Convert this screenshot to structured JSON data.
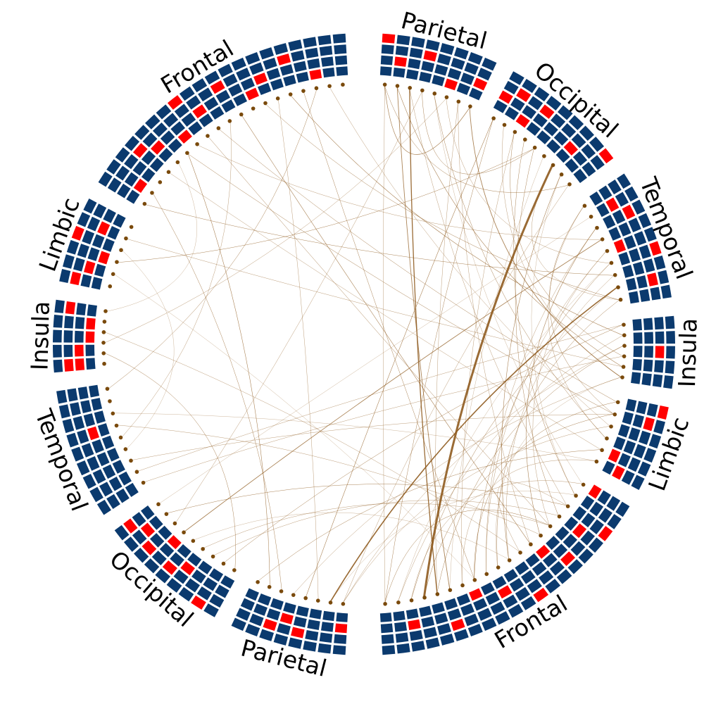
{
  "colors": {
    "cell_normal": "#0b3a6e",
    "cell_highlight": "#ff0000",
    "node": "#7a4a0c",
    "link": "#8f5b1f"
  },
  "regions": [
    {
      "label": "Frontal",
      "hemisphere": "right",
      "columns": 20,
      "rows": 4,
      "highlight": [
        [
          2,
          1
        ],
        [
          5,
          2
        ],
        [
          7,
          0
        ],
        [
          9,
          1
        ],
        [
          11,
          3
        ],
        [
          13,
          0
        ],
        [
          14,
          2
        ],
        [
          16,
          1
        ],
        [
          17,
          3
        ],
        [
          19,
          0
        ]
      ]
    },
    {
      "label": "Limbic",
      "hemisphere": "right",
      "columns": 6,
      "rows": 4,
      "highlight": [
        [
          0,
          1
        ],
        [
          1,
          0
        ],
        [
          4,
          2
        ],
        [
          5,
          3
        ]
      ]
    },
    {
      "label": "Insula",
      "hemisphere": "right",
      "columns": 5,
      "rows": 4,
      "highlight": [
        [
          2,
          2
        ]
      ]
    },
    {
      "label": "Temporal",
      "hemisphere": "right",
      "columns": 9,
      "rows": 4,
      "highlight": [
        [
          1,
          2
        ],
        [
          3,
          3
        ],
        [
          4,
          0
        ],
        [
          6,
          2
        ],
        [
          7,
          1
        ]
      ]
    },
    {
      "label": "Occipital",
      "hemisphere": "right",
      "columns": 9,
      "rows": 4,
      "highlight": [
        [
          0,
          3
        ],
        [
          2,
          1
        ],
        [
          5,
          2
        ],
        [
          6,
          0
        ],
        [
          7,
          2
        ],
        [
          8,
          1
        ]
      ]
    },
    {
      "label": "Parietal",
      "hemisphere": "right",
      "columns": 8,
      "rows": 4,
      "highlight": [
        [
          0,
          1
        ],
        [
          2,
          0
        ],
        [
          4,
          2
        ],
        [
          6,
          1
        ],
        [
          7,
          3
        ]
      ]
    },
    {
      "label": "Parietal",
      "hemisphere": "left",
      "columns": 8,
      "rows": 4,
      "highlight": [
        [
          0,
          1
        ],
        [
          3,
          2
        ],
        [
          4,
          1
        ],
        [
          5,
          2
        ]
      ]
    },
    {
      "label": "Occipital",
      "hemisphere": "left",
      "columns": 9,
      "rows": 4,
      "highlight": [
        [
          1,
          3
        ],
        [
          3,
          1
        ],
        [
          4,
          2
        ],
        [
          5,
          0
        ],
        [
          6,
          2
        ],
        [
          7,
          1
        ],
        [
          8,
          2
        ]
      ]
    },
    {
      "label": "Temporal",
      "hemisphere": "left",
      "columns": 9,
      "rows": 4,
      "highlight": [
        [
          5,
          1
        ]
      ]
    },
    {
      "label": "Insula",
      "hemisphere": "left",
      "columns": 5,
      "rows": 4,
      "highlight": [
        [
          0,
          1
        ],
        [
          0,
          2
        ],
        [
          1,
          1
        ],
        [
          2,
          0
        ],
        [
          3,
          0
        ],
        [
          4,
          2
        ]
      ]
    },
    {
      "label": "Limbic",
      "hemisphere": "left",
      "columns": 6,
      "rows": 4,
      "highlight": [
        [
          0,
          2
        ],
        [
          1,
          1
        ],
        [
          2,
          0
        ],
        [
          3,
          3
        ],
        [
          4,
          1
        ]
      ]
    },
    {
      "label": "Frontal",
      "hemisphere": "left",
      "columns": 20,
      "rows": 4,
      "highlight": [
        [
          1,
          0
        ],
        [
          3,
          2
        ],
        [
          4,
          1
        ],
        [
          6,
          0
        ],
        [
          7,
          3
        ],
        [
          8,
          1
        ],
        [
          10,
          2
        ],
        [
          12,
          0
        ],
        [
          13,
          1
        ],
        [
          15,
          2
        ],
        [
          17,
          0
        ]
      ]
    }
  ],
  "connections": [
    [
      0,
      7,
      0.7
    ],
    [
      0,
      16,
      0.5
    ],
    [
      1,
      30,
      0.6
    ],
    [
      2,
      40,
      0.4
    ],
    [
      3,
      12,
      0.5
    ],
    [
      4,
      35,
      0.5
    ],
    [
      5,
      22,
      0.4
    ],
    [
      6,
      44,
      0.4
    ],
    [
      8,
      60,
      0.6
    ],
    [
      9,
      31,
      0.4
    ],
    [
      10,
      50,
      0.4
    ],
    [
      12,
      41,
      0.5
    ],
    [
      14,
      25,
      0.4
    ],
    [
      15,
      39,
      0.3
    ],
    [
      17,
      33,
      0.5
    ],
    [
      19,
      48,
      0.4
    ],
    [
      20,
      70,
      0.9
    ],
    [
      21,
      42,
      0.4
    ],
    [
      22,
      55,
      0.3
    ],
    [
      23,
      46,
      0.4
    ],
    [
      24,
      58,
      1.6
    ],
    [
      25,
      47,
      0.5
    ],
    [
      26,
      66,
      0.5
    ],
    [
      28,
      52,
      0.5
    ],
    [
      29,
      74,
      0.4
    ],
    [
      31,
      61,
      0.4
    ],
    [
      32,
      49,
      0.5
    ],
    [
      33,
      76,
      0.4
    ],
    [
      34,
      57,
      0.4
    ],
    [
      36,
      64,
      0.5
    ],
    [
      37,
      80,
      0.3
    ],
    [
      38,
      54,
      0.4
    ],
    [
      40,
      72,
      0.5
    ],
    [
      42,
      68,
      0.4
    ],
    [
      43,
      79,
      0.4
    ],
    [
      45,
      86,
      0.4
    ],
    [
      49,
      90,
      0.3
    ],
    [
      51,
      115,
      0.9
    ],
    [
      53,
      128,
      3.0
    ],
    [
      56,
      122,
      0.5
    ],
    [
      59,
      108,
      0.4
    ],
    [
      62,
      96,
      0.5
    ],
    [
      63,
      100,
      0.6
    ],
    [
      65,
      84,
      0.5
    ],
    [
      67,
      155,
      0.4
    ],
    [
      69,
      160,
      0.3
    ],
    [
      71,
      117,
      0.4
    ],
    [
      73,
      132,
      0.3
    ],
    [
      75,
      140,
      0.4
    ],
    [
      77,
      92,
      0.3
    ],
    [
      78,
      104,
      0.4
    ],
    [
      82,
      111,
      0.5
    ],
    [
      85,
      119,
      0.4
    ],
    [
      88,
      99,
      0.3
    ],
    [
      91,
      126,
      0.5
    ],
    [
      93,
      144,
      0.4
    ],
    [
      95,
      137,
      0.5
    ],
    [
      98,
      150,
      0.4
    ],
    [
      101,
      134,
      0.4
    ],
    [
      103,
      146,
      0.5
    ],
    [
      105,
      158,
      0.6
    ],
    [
      107,
      139,
      0.5
    ],
    [
      110,
      163,
      0.5
    ],
    [
      112,
      148,
      0.4
    ],
    [
      114,
      170,
      0.4
    ],
    [
      118,
      152,
      0.3
    ],
    [
      120,
      166,
      0.4
    ],
    [
      124,
      143,
      0.5
    ],
    [
      127,
      165,
      0.3
    ],
    [
      130,
      171,
      0.4
    ],
    [
      133,
      157,
      0.6
    ],
    [
      135,
      162,
      0.4
    ],
    [
      138,
      168,
      0.5
    ],
    [
      141,
      169,
      0.4
    ],
    [
      145,
      161,
      0.3
    ],
    [
      147,
      167,
      0.5
    ],
    [
      151,
      164,
      0.4
    ],
    [
      153,
      172,
      0.3
    ],
    [
      154,
      159,
      0.4
    ],
    [
      156,
      170,
      0.5
    ],
    [
      116,
      166,
      1.3
    ],
    [
      121,
      145,
      0.9
    ],
    [
      125,
      153,
      0.5
    ],
    [
      129,
      160,
      0.6
    ],
    [
      131,
      149,
      0.4
    ],
    [
      136,
      163,
      0.5
    ],
    [
      142,
      171,
      0.4
    ],
    [
      100,
      147,
      0.5
    ],
    [
      102,
      156,
      0.5
    ],
    [
      109,
      141,
      0.6
    ]
  ]
}
